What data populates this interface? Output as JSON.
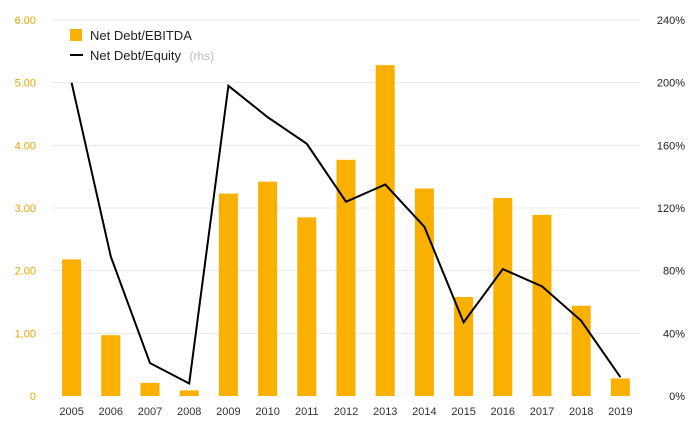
{
  "chart_data": {
    "type": "bar",
    "categories": [
      "2005",
      "2006",
      "2007",
      "2008",
      "2009",
      "2010",
      "2011",
      "2012",
      "2013",
      "2014",
      "2015",
      "2016",
      "2017",
      "2018",
      "2019"
    ],
    "series": [
      {
        "name": "Net Debt/EBITDA",
        "type": "bar",
        "axis": "left",
        "color": "#f9b000",
        "values": [
          2.18,
          0.97,
          0.21,
          0.09,
          3.23,
          3.42,
          2.85,
          3.77,
          5.28,
          3.31,
          1.58,
          3.16,
          2.89,
          1.44,
          0.28
        ]
      },
      {
        "name": "Net Debt/Equity",
        "name_suffix": "(rhs)",
        "type": "line",
        "axis": "right",
        "color": "#000000",
        "values": [
          200,
          89,
          21,
          8,
          198,
          178,
          161,
          124,
          135,
          108,
          47,
          81,
          70,
          48,
          12
        ]
      }
    ],
    "ylim": [
      0,
      6
    ],
    "y2lim": [
      0,
      240
    ],
    "yticks": [
      "0",
      "1.00",
      "2.00",
      "3.00",
      "4.00",
      "5.00",
      "6.00"
    ],
    "y2ticks": [
      "0%",
      "40%",
      "80%",
      "120%",
      "160%",
      "200%",
      "240%"
    ],
    "grid": true,
    "legend_position": "top-left"
  }
}
